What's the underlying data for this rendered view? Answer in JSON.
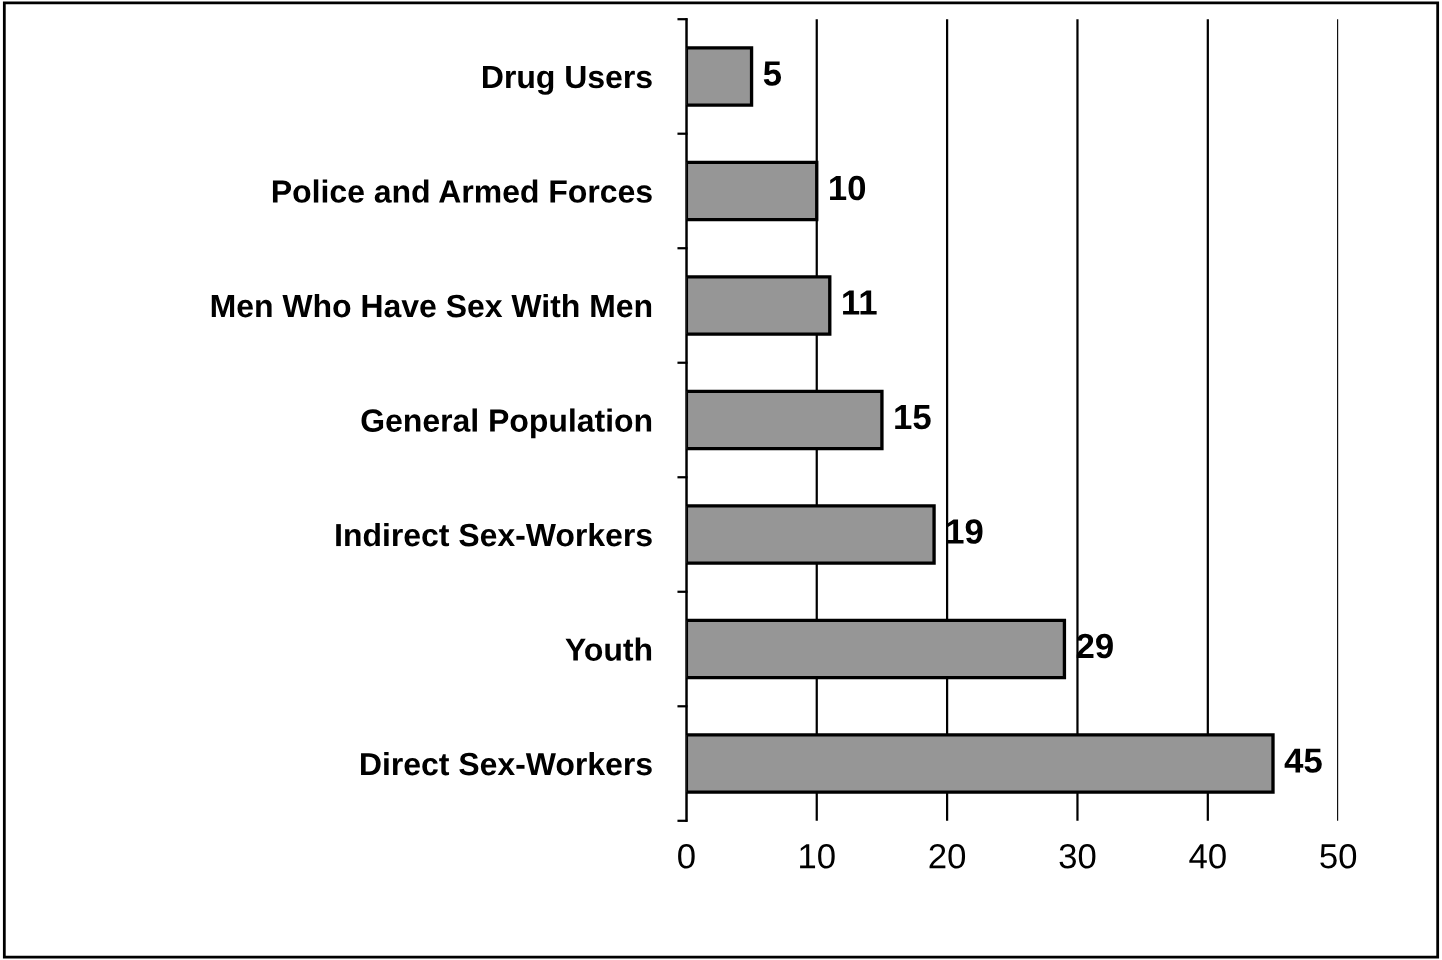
{
  "chart_data": {
    "type": "bar",
    "orientation": "horizontal",
    "categories": [
      "Drug Users",
      "Police and Armed Forces",
      "Men Who Have Sex With Men",
      "General Population",
      "Indirect Sex-Workers",
      "Youth",
      "Direct Sex-Workers"
    ],
    "values": [
      5,
      10,
      11,
      15,
      19,
      29,
      45
    ],
    "color": "#969696",
    "xlim": [
      0,
      50
    ],
    "xticks": [
      0,
      10,
      20,
      30,
      40,
      50
    ],
    "grid": "x",
    "data_labels": true
  }
}
